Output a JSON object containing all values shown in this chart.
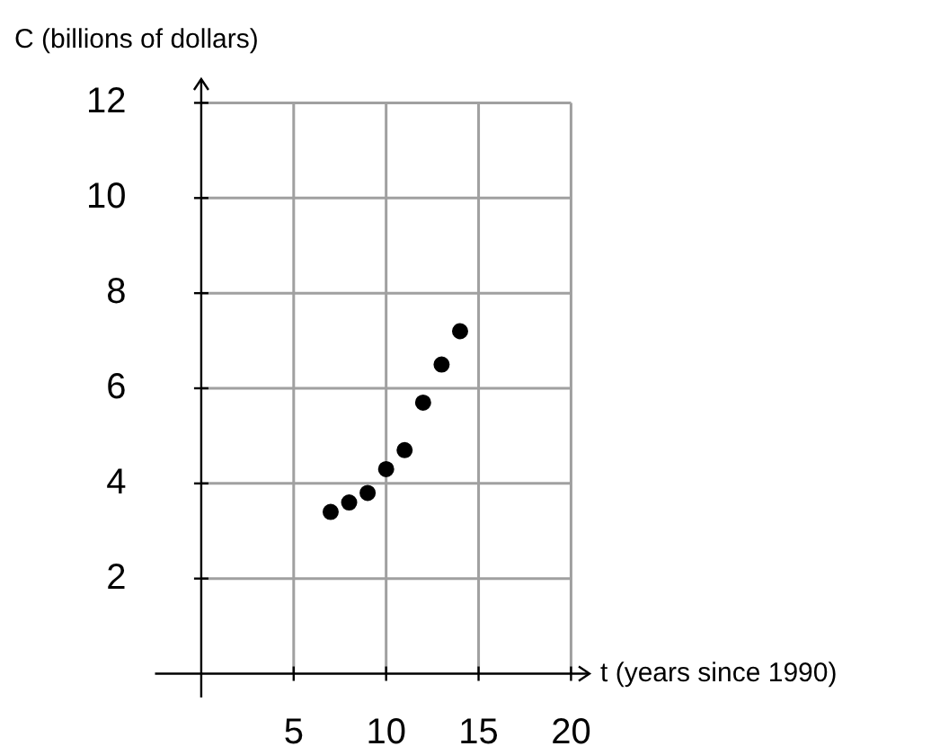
{
  "chart_data": {
    "type": "scatter",
    "xlabel": "t (years since 1990)",
    "ylabel": "C (billions of dollars)",
    "x": [
      7,
      8,
      9,
      10,
      11,
      12,
      13,
      14
    ],
    "values": [
      3.4,
      3.6,
      3.8,
      4.3,
      4.7,
      5.7,
      6.5,
      7.2
    ],
    "color": "#000000",
    "marker": "circle",
    "xlim": [
      -2.5,
      21
    ],
    "ylim": [
      -0.5,
      12.5
    ],
    "xticks": [
      5,
      10,
      15,
      20
    ],
    "yticks": [
      2,
      4,
      6,
      8,
      10,
      12
    ],
    "grid": true
  }
}
